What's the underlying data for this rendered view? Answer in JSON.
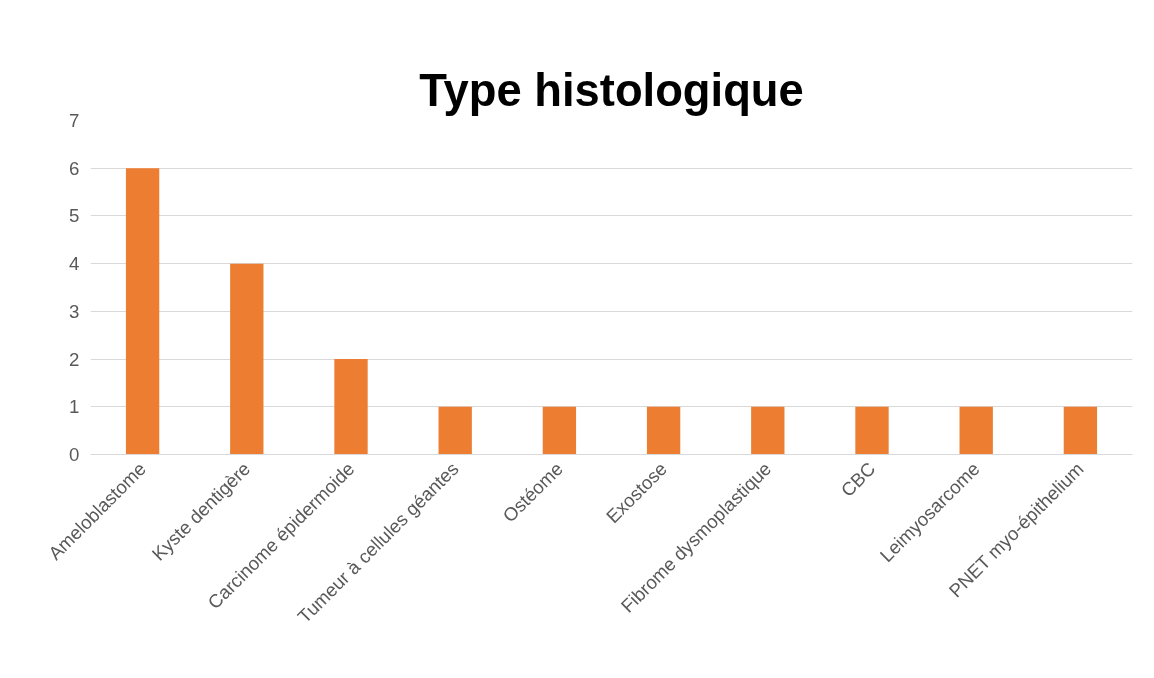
{
  "chart_data": {
    "type": "bar",
    "title": "Type histologique",
    "categories": [
      "Ameloblastome",
      "Kyste dentigère",
      "Carcinome épidermoide",
      "Tumeur à cellules géantes",
      "Ostéome",
      "Exostose",
      "Fibrome dysmoplastique",
      "CBC",
      "Leimyosarcome",
      "PNET myo-épithelium"
    ],
    "values": [
      6,
      4,
      2,
      1,
      1,
      1,
      1,
      1,
      1,
      1
    ],
    "color": "#ed7d31",
    "ylim": [
      0,
      7
    ],
    "yticks": [
      0,
      1,
      2,
      3,
      4,
      5,
      6,
      7
    ],
    "grid": "y"
  }
}
